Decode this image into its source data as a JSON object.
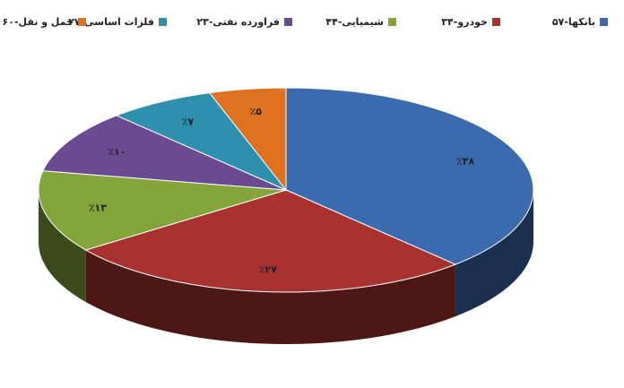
{
  "chart_data": {
    "type": "pie",
    "style": "3d",
    "title": "",
    "legend_placement": "top",
    "series": [
      {
        "name": "بانکها-۵۷",
        "value": 38,
        "label": "٪۳۸",
        "color": "#3C6AAF"
      },
      {
        "name": "خودرو-۳۴",
        "value": 27,
        "label": "٪۲۷",
        "color": "#A8322F"
      },
      {
        "name": "شیمیایی-۴۴",
        "value": 13,
        "label": "٪۱۳",
        "color": "#83A53A"
      },
      {
        "name": "فراورده نفتی-۲۳",
        "value": 10,
        "label": "٪۱۰",
        "color": "#6A4B91"
      },
      {
        "name": "فلزات اساسی-۲۷",
        "value": 7,
        "label": "٪۷",
        "color": "#2E90AC"
      },
      {
        "name": "حمل و نقل-۶۰",
        "value": 5,
        "label": "٪۵",
        "color": "#DE7220"
      }
    ]
  }
}
